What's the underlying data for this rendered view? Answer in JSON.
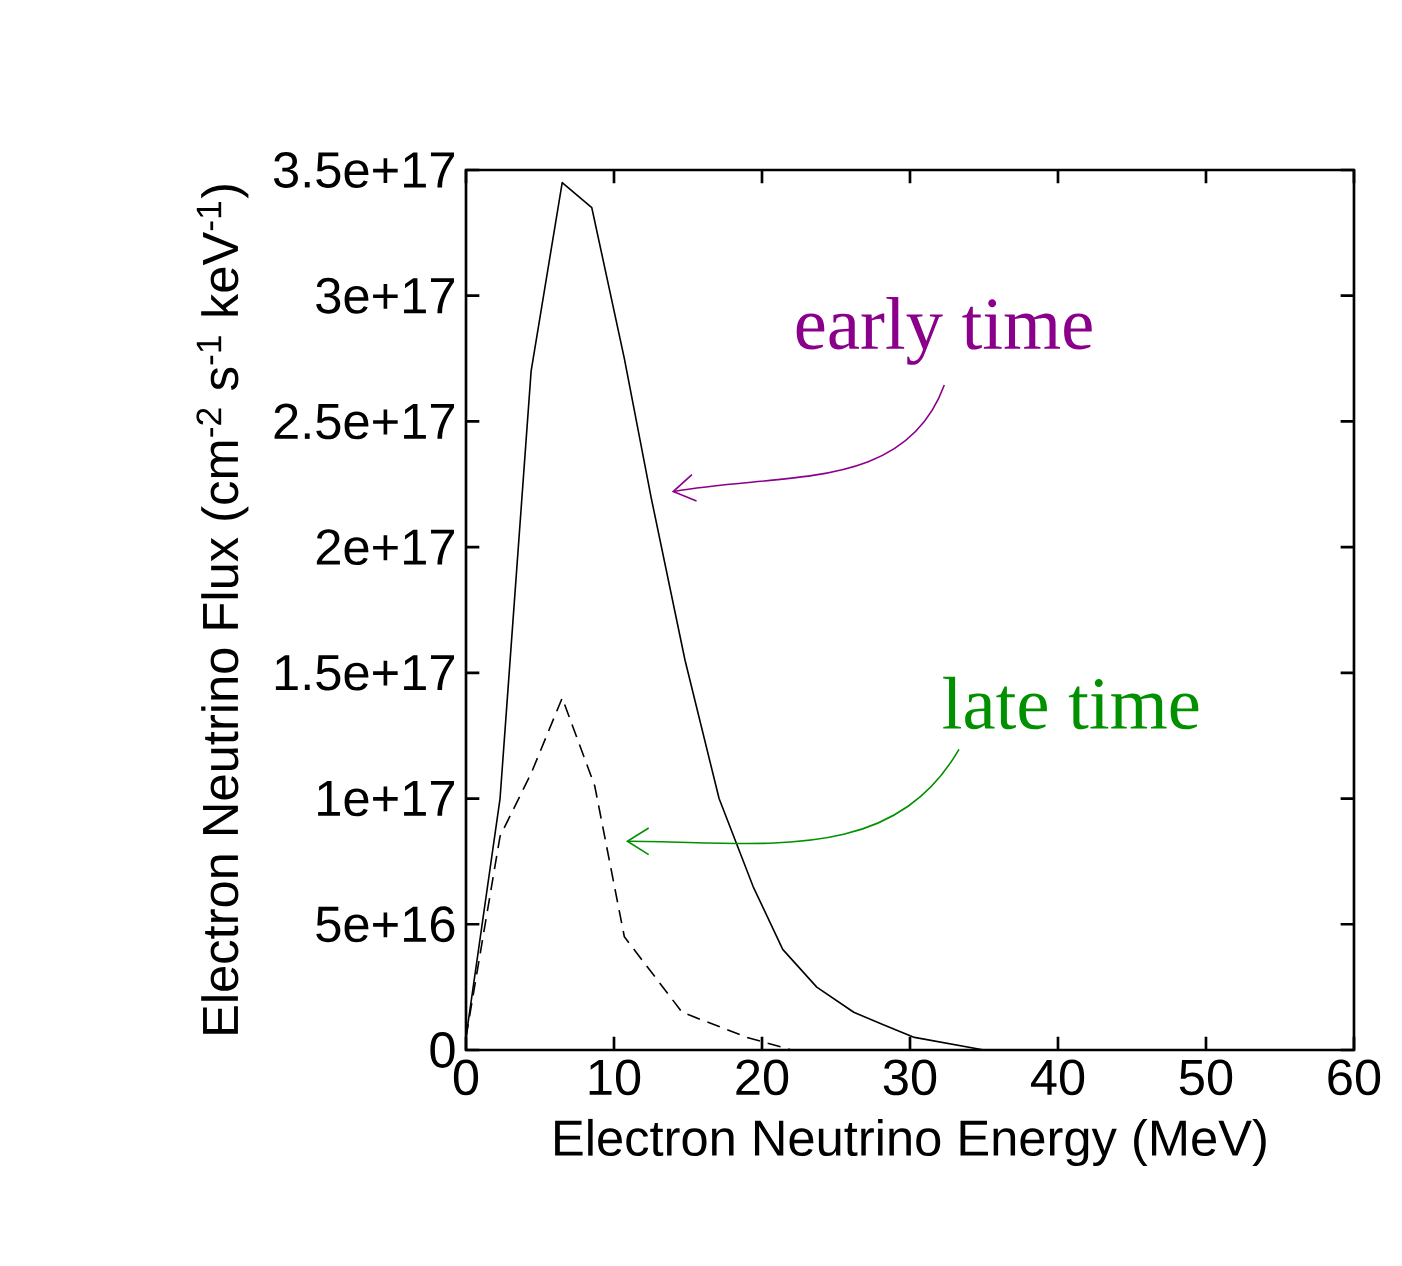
{
  "chart_data": {
    "type": "line",
    "xlabel": "Electron Neutrino Energy (MeV)",
    "ylabel": "Electron Neutrino Flux (cm$^{-2}$ s$^{-1}$ keV$^{-1}$)",
    "xlim": [
      0,
      60
    ],
    "xticks": [
      0,
      10,
      20,
      30,
      40,
      50,
      60
    ],
    "ylim": [
      0,
      3.5e+17
    ],
    "yticks": [
      0,
      {
        "value": 5e+16,
        "label": "5e+16"
      },
      {
        "value": 1e+17,
        "label": "1e+17"
      },
      {
        "value": 1.5e+17,
        "label": "1.5e+17"
      },
      {
        "value": 2e+17,
        "label": "2e+17"
      },
      {
        "value": 2.5e+17,
        "label": "2.5e+17"
      },
      {
        "value": 3e+17,
        "label": "3e+17"
      },
      {
        "value": 3.5e+17,
        "label": "3.5e+17"
      }
    ],
    "grid": false,
    "marker": "none",
    "series": [
      {
        "color": "#000000",
        "line_style": "solid",
        "x": [
          0,
          2.3,
          4.4,
          6.5,
          8.5,
          10.7,
          12.5,
          14.8,
          17.1,
          19.4,
          21.4,
          23.7,
          26.2,
          28.2,
          30.3,
          35,
          40
        ],
        "values": [
          5000000000000000.0,
          1e+17,
          2.7e+17,
          3.45e+17,
          3.35e+17,
          2.75e+17,
          2.2e+17,
          1.55e+17,
          1e+17,
          6.5e+16,
          4e+16,
          2.5e+16,
          1.5e+16,
          1e+16,
          5000000000000000.0,
          0,
          0
        ]
      },
      {
        "color": "#000000",
        "line_style": "dashed",
        "x": [
          0,
          2.3,
          4.4,
          6.5,
          8.7,
          10.7,
          14.6,
          19,
          22,
          30
        ],
        "values": [
          5000000000000000.0,
          8.5e+16,
          1.1e+17,
          1.4e+17,
          1.05e+17,
          4.5e+16,
          1.5e+16,
          5000000000000000.0,
          0,
          0
        ]
      }
    ],
    "annotations": [
      "early time",
      "late time"
    ]
  }
}
